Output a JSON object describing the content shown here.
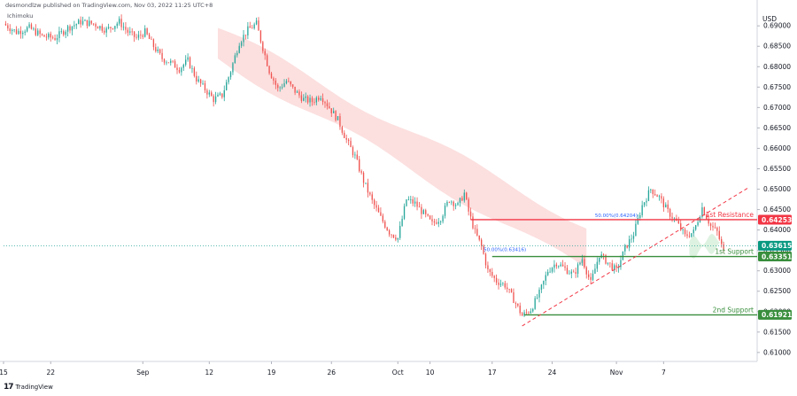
{
  "header": {
    "publisher_line": "desmondlzw published on TradingView.com, Nov 03, 2022 11:25 UTC+8",
    "indicator": "Ichimoku",
    "currency": "USD",
    "footer_brand": "TradingView",
    "footer_brand_mark": "17"
  },
  "colors": {
    "up": "#26a69a",
    "down": "#ef5350",
    "resistance": "#f23645",
    "support": "#089981",
    "support_line": "#388e3c",
    "cloud_bear": "#fcd9d9",
    "cloud_bull": "#d8f0dc",
    "trend": "#f23645",
    "fib_blue": "#2962ff"
  },
  "chart_data": {
    "type": "candlestick",
    "y_axis": {
      "ylim": [
        0.6078,
        0.6946
      ],
      "ticks": [
        "0.69000",
        "0.68500",
        "0.68000",
        "0.67500",
        "0.67000",
        "0.66500",
        "0.66000",
        "0.65500",
        "0.65000",
        "0.64500",
        "0.64000",
        "0.63500",
        "0.63000",
        "0.62500",
        "0.62000",
        "0.61500",
        "0.61000"
      ],
      "tick_values": [
        0.69,
        0.685,
        0.68,
        0.675,
        0.67,
        0.665,
        0.66,
        0.655,
        0.65,
        0.645,
        0.64,
        0.635,
        0.63,
        0.625,
        0.62,
        0.615,
        0.61
      ]
    },
    "x_axis": {
      "ticks": [
        "15",
        "22",
        "Sep",
        "12",
        "19",
        "26",
        "Oct",
        "10",
        "17",
        "24",
        "Nov",
        "7"
      ],
      "tick_bar_index": [
        0,
        22,
        65,
        96,
        125,
        153,
        184,
        199,
        228,
        256,
        286,
        308
      ],
      "bar_count": 350
    },
    "close_path": [
      [
        0,
        0.6905
      ],
      [
        6,
        0.6885
      ],
      [
        12,
        0.6895
      ],
      [
        18,
        0.6875
      ],
      [
        24,
        0.687
      ],
      [
        30,
        0.6895
      ],
      [
        36,
        0.691
      ],
      [
        42,
        0.6905
      ],
      [
        48,
        0.689
      ],
      [
        54,
        0.691
      ],
      [
        58,
        0.6885
      ],
      [
        62,
        0.687
      ],
      [
        66,
        0.6885
      ],
      [
        70,
        0.685
      ],
      [
        74,
        0.682
      ],
      [
        78,
        0.681
      ],
      [
        82,
        0.6795
      ],
      [
        86,
        0.6815
      ],
      [
        90,
        0.677
      ],
      [
        94,
        0.6745
      ],
      [
        98,
        0.672
      ],
      [
        102,
        0.673
      ],
      [
        106,
        0.679
      ],
      [
        110,
        0.686
      ],
      [
        114,
        0.689
      ],
      [
        118,
        0.6905
      ],
      [
        120,
        0.6865
      ],
      [
        124,
        0.679
      ],
      [
        128,
        0.6745
      ],
      [
        132,
        0.6765
      ],
      [
        136,
        0.674
      ],
      [
        140,
        0.672
      ],
      [
        144,
        0.6715
      ],
      [
        148,
        0.673
      ],
      [
        152,
        0.67
      ],
      [
        156,
        0.667
      ],
      [
        160,
        0.662
      ],
      [
        164,
        0.658
      ],
      [
        168,
        0.652
      ],
      [
        172,
        0.647
      ],
      [
        176,
        0.643
      ],
      [
        180,
        0.6395
      ],
      [
        184,
        0.638
      ],
      [
        188,
        0.6475
      ],
      [
        192,
        0.6465
      ],
      [
        196,
        0.644
      ],
      [
        200,
        0.6415
      ],
      [
        204,
        0.643
      ],
      [
        208,
        0.6475
      ],
      [
        212,
        0.646
      ],
      [
        215,
        0.649
      ],
      [
        217,
        0.6445
      ],
      [
        220,
        0.6395
      ],
      [
        223,
        0.636
      ],
      [
        226,
        0.63
      ],
      [
        230,
        0.6275
      ],
      [
        234,
        0.6265
      ],
      [
        238,
        0.623
      ],
      [
        242,
        0.619
      ],
      [
        246,
        0.6205
      ],
      [
        250,
        0.6245
      ],
      [
        254,
        0.63
      ],
      [
        258,
        0.632
      ],
      [
        262,
        0.6305
      ],
      [
        266,
        0.629
      ],
      [
        270,
        0.633
      ],
      [
        274,
        0.627
      ],
      [
        278,
        0.634
      ],
      [
        282,
        0.632
      ],
      [
        286,
        0.63
      ],
      [
        290,
        0.6355
      ],
      [
        294,
        0.639
      ],
      [
        298,
        0.646
      ],
      [
        302,
        0.65
      ],
      [
        306,
        0.648
      ],
      [
        310,
        0.6445
      ],
      [
        314,
        0.642
      ],
      [
        318,
        0.6385
      ],
      [
        322,
        0.6395
      ],
      [
        326,
        0.6455
      ],
      [
        330,
        0.641
      ],
      [
        333,
        0.6395
      ],
      [
        336,
        0.6345
      ]
    ],
    "levels": [
      {
        "name": "1st Resistance",
        "value": 0.64253,
        "badge": "0.64253",
        "from_bar": 218
      },
      {
        "name": "",
        "value": 0.63615,
        "badge": "0.63615",
        "from_bar": 0
      },
      {
        "name": "1st Support",
        "value": 0.63351,
        "badge": "0.63351",
        "from_bar": 228
      },
      {
        "name": "2nd Support",
        "value": 0.61921,
        "badge": "0.61921",
        "from_bar": 243
      }
    ],
    "fib_labels": [
      {
        "text": "50.00%(0.64204)",
        "bar": 276,
        "value": 0.6432
      },
      {
        "text": "50.00%(0.63416)",
        "bar": 224,
        "value": 0.6348
      }
    ],
    "trendline": {
      "from": [
        242,
        0.6165
      ],
      "to": [
        348,
        0.6505
      ]
    },
    "cloud_bear_region": {
      "bars": [
        100,
        272
      ],
      "top": [
        0.6895,
        0.641
      ],
      "bottom": [
        0.682,
        0.63
      ]
    },
    "cloud_bull_region": {
      "bars": [
        320,
        336
      ],
      "top": [
        0.6372,
        0.6382
      ],
      "bottom": [
        0.634,
        0.636
      ]
    }
  }
}
